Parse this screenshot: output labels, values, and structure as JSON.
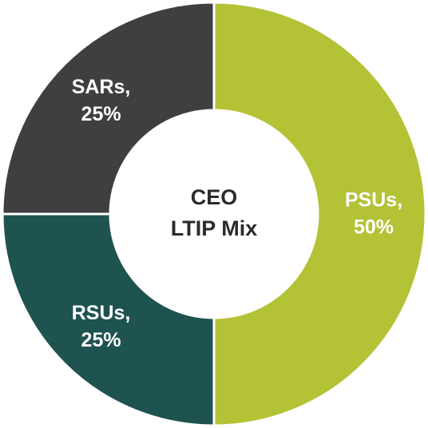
{
  "chart_data": {
    "type": "donut",
    "title": [
      "CEO",
      "LTIP Mix"
    ],
    "categories": [
      "PSUs,",
      "RSUs,",
      "SARs,"
    ],
    "values": [
      50,
      25,
      25
    ],
    "value_labels": [
      "50%",
      "25%",
      "25%"
    ],
    "colors": [
      "#b4c236",
      "#1e5350",
      "#3f3f41"
    ]
  }
}
